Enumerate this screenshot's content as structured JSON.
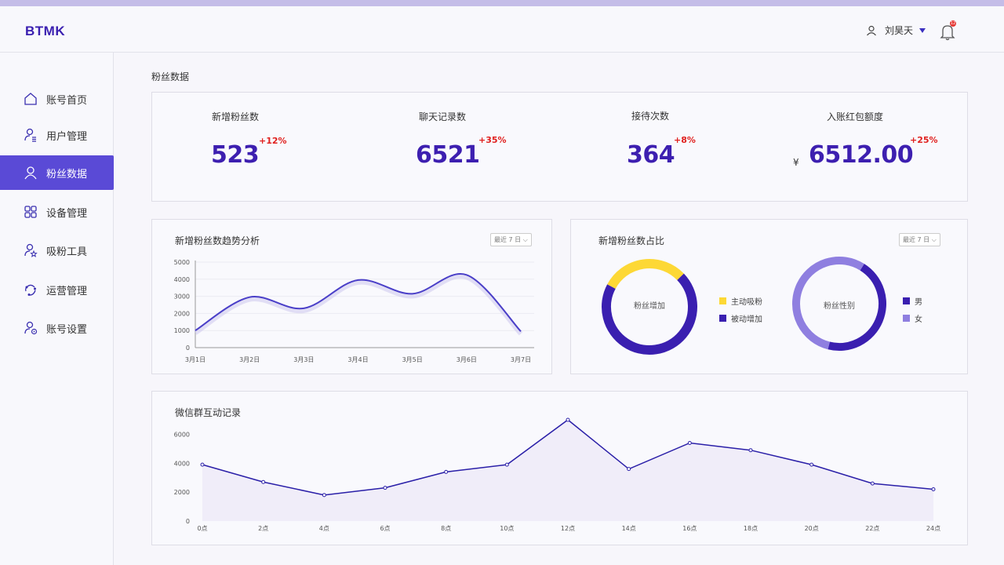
{
  "app": {
    "logo": "BTMK"
  },
  "header": {
    "user_name": "刘昊天",
    "notification_badge": "12"
  },
  "sidebar": {
    "items": [
      {
        "label": "账号首页",
        "icon": "home-icon"
      },
      {
        "label": "用户管理",
        "icon": "user-list-icon"
      },
      {
        "label": "粉丝数据",
        "icon": "fans-icon",
        "active": true
      },
      {
        "label": "设备管理",
        "icon": "grid-icon"
      },
      {
        "label": "吸粉工具",
        "icon": "user-star-icon"
      },
      {
        "label": "运营管理",
        "icon": "share-icon"
      },
      {
        "label": "账号设置",
        "icon": "user-settings-icon"
      }
    ]
  },
  "main": {
    "section_title": "粉丝数据",
    "stats": [
      {
        "label": "新增粉丝数",
        "value": "523",
        "delta": "+12%"
      },
      {
        "label": "聊天记录数",
        "value": "6521",
        "delta": "+35%"
      },
      {
        "label": "接待次数",
        "value": "364",
        "delta": "+8%"
      },
      {
        "label": "入账红包额度",
        "value": "6512.00",
        "delta": "+25%",
        "prefix": "¥"
      }
    ],
    "trend_card": {
      "title": "新增粉丝数趋势分析",
      "range": "最近 7 日"
    },
    "ratio_card": {
      "title": "新增粉丝数占比",
      "range": "最近 7 日",
      "donut1_label": "粉丝增加",
      "donut2_label": "粉丝性别",
      "legend1": [
        "主动吸粉",
        "被动增加"
      ],
      "legend2": [
        "男",
        "女"
      ]
    },
    "wechat_card": {
      "title": "微信群互动记录"
    }
  },
  "colors": {
    "accent": "#3d1fb0",
    "active_nav": "#5a4ad6",
    "delta": "#e0201e",
    "yellow": "#fdd835",
    "line": "#4a3fc8"
  },
  "chart_data": [
    {
      "type": "line",
      "title": "新增粉丝数趋势分析",
      "categories": [
        "3月1日",
        "3月2日",
        "3月3日",
        "3月4日",
        "3月5日",
        "3月6日",
        "3月7日"
      ],
      "values": [
        1000,
        2950,
        2300,
        3950,
        3150,
        4250,
        950
      ],
      "ylim": [
        0,
        5000
      ],
      "yticks": [
        "0",
        "1000",
        "2000",
        "3000",
        "4000",
        "5000"
      ],
      "grid": true
    },
    {
      "type": "pie",
      "title": "粉丝增加",
      "categories": [
        "主动吸粉",
        "被动增加"
      ],
      "values": [
        30,
        70
      ],
      "colors": [
        "#fdd835",
        "#3a1fb0"
      ]
    },
    {
      "type": "pie",
      "title": "粉丝性别",
      "categories": [
        "男",
        "女"
      ],
      "values": [
        45,
        55
      ],
      "colors": [
        "#3a1fb0",
        "#8f7fe0"
      ]
    },
    {
      "type": "area",
      "title": "微信群互动记录",
      "categories": [
        "0点",
        "2点",
        "4点",
        "6点",
        "8点",
        "10点",
        "12点",
        "14点",
        "16点",
        "18点",
        "20点",
        "22点",
        "24点"
      ],
      "values": [
        3900,
        2700,
        1800,
        2300,
        3400,
        3900,
        7000,
        3600,
        5400,
        4900,
        3900,
        2600,
        2200
      ],
      "ylim": [
        0,
        7000
      ],
      "yticks": [
        "0",
        "2000",
        "4000",
        "6000"
      ]
    }
  ]
}
